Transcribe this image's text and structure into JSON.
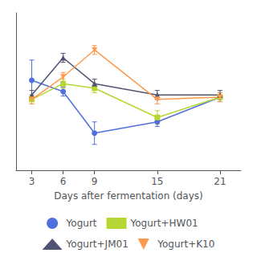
{
  "chart_data": {
    "type": "line",
    "xlabel": "Days after fermentation (days)",
    "x": [
      3,
      6,
      9,
      15,
      21
    ],
    "series": [
      {
        "name": "Yogurt",
        "values": [
          8.25,
          8.15,
          7.78,
          7.88,
          8.1
        ],
        "yerr": [
          0.18,
          0.04,
          0.1,
          0.04,
          0.04
        ],
        "marker": "circle"
      },
      {
        "name": "Yogurt+HW01",
        "values": [
          8.08,
          8.22,
          8.18,
          7.92,
          8.1
        ],
        "yerr": [
          0.04,
          0.04,
          0.04,
          0.06,
          0.04
        ],
        "marker": "square"
      },
      {
        "name": "Yogurt+JM01",
        "values": [
          8.12,
          8.45,
          8.22,
          8.12,
          8.12
        ],
        "yerr": [
          0.04,
          0.04,
          0.04,
          0.04,
          0.04
        ],
        "marker": "triangle-up"
      },
      {
        "name": "Yogurt+K10",
        "values": [
          8.08,
          8.28,
          8.52,
          8.08,
          8.1
        ],
        "yerr": [
          0.04,
          0.04,
          0.04,
          0.04,
          0.04
        ],
        "marker": "triangle-down"
      }
    ],
    "xlim": [
      1.5,
      23
    ],
    "ylim": [
      7.45,
      8.85
    ],
    "xticks": [
      3,
      6,
      9,
      15,
      21
    ],
    "tick_labels": "x",
    "grid": false,
    "legend": "bottom"
  }
}
